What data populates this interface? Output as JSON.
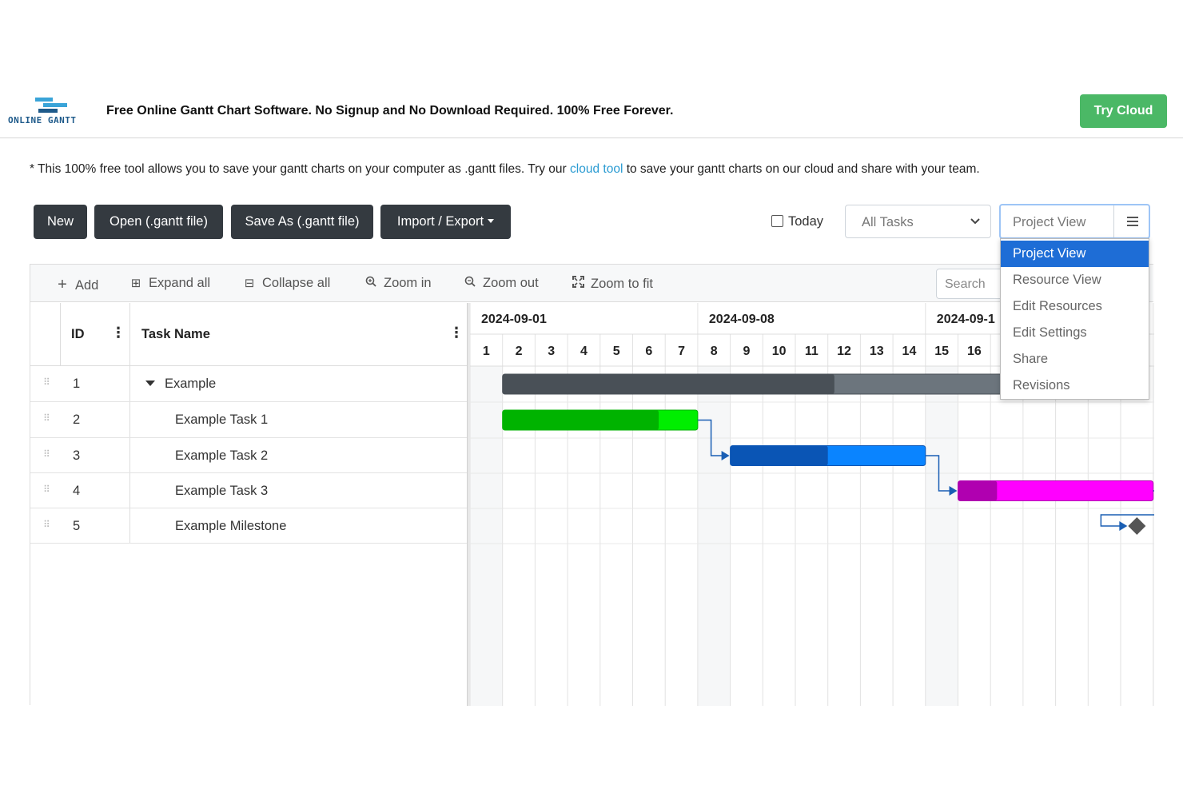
{
  "header": {
    "logo_text": "ONLINE GANTT",
    "tagline": "Free Online Gantt Chart Software. No Signup and No Download Required. 100% Free Forever.",
    "try_cloud": "Try Cloud"
  },
  "note": {
    "before": "* This 100% free tool allows you to save your gantt charts on your computer as .gantt files. Try our ",
    "link": "cloud tool",
    "after": " to save your gantt charts on our cloud and share with your team."
  },
  "toolbar": {
    "new": "New",
    "open": "Open (.gantt file)",
    "save_as": "Save As (.gantt file)",
    "import_export": "Import / Export",
    "today": "Today",
    "filter_value": "All Tasks",
    "view_value": "Project View"
  },
  "view_menu": {
    "items": [
      "Project View",
      "Resource View",
      "Edit Resources",
      "Edit Settings",
      "Share",
      "Revisions"
    ],
    "active": "Project View"
  },
  "gantt_toolbar": {
    "add": "Add",
    "expand_all": "Expand all",
    "collapse_all": "Collapse all",
    "zoom_in": "Zoom in",
    "zoom_out": "Zoom out",
    "zoom_fit": "Zoom to fit",
    "search_placeholder": "Search"
  },
  "grid": {
    "col_id": "ID",
    "col_name": "Task Name",
    "rows": [
      {
        "id": "1",
        "name": "Example"
      },
      {
        "id": "2",
        "name": "Example Task 1"
      },
      {
        "id": "3",
        "name": "Example Task 2"
      },
      {
        "id": "4",
        "name": "Example Task 3"
      },
      {
        "id": "5",
        "name": "Example Milestone"
      }
    ]
  },
  "timeline": {
    "weeks": [
      "2024-09-01",
      "2024-09-08",
      "2024-09-1"
    ],
    "days": [
      "1",
      "2",
      "3",
      "4",
      "5",
      "6",
      "7",
      "8",
      "9",
      "10",
      "11",
      "12",
      "13",
      "14",
      "15",
      "16"
    ]
  },
  "tasks": [
    {
      "id": 1,
      "start": 2,
      "end": 18,
      "progress": 0.6,
      "color": "#495057",
      "light": "#6c757d",
      "type": "summary"
    },
    {
      "id": 2,
      "start": 2,
      "end": 7,
      "progress": 0.8,
      "color": "#00b300",
      "light": "#00ee00",
      "type": "task"
    },
    {
      "id": 3,
      "start": 9,
      "end": 14,
      "progress": 0.5,
      "color": "#0a55b5",
      "light": "#0a84ff",
      "type": "task"
    },
    {
      "id": 4,
      "start": 16,
      "end": 21,
      "progress": 0.2,
      "color": "#b000b0",
      "light": "#ff00ff",
      "type": "task"
    },
    {
      "id": 5,
      "start": 21,
      "end": 21,
      "progress": 0,
      "color": "#555555",
      "light": "#555555",
      "type": "milestone"
    }
  ],
  "colors": {
    "dark_button": "#343a40",
    "try_cloud": "#4bb866",
    "link": "#2a9bd2",
    "active_menu": "#1e6dd6",
    "weekend_shade": "#f6f7f8"
  }
}
